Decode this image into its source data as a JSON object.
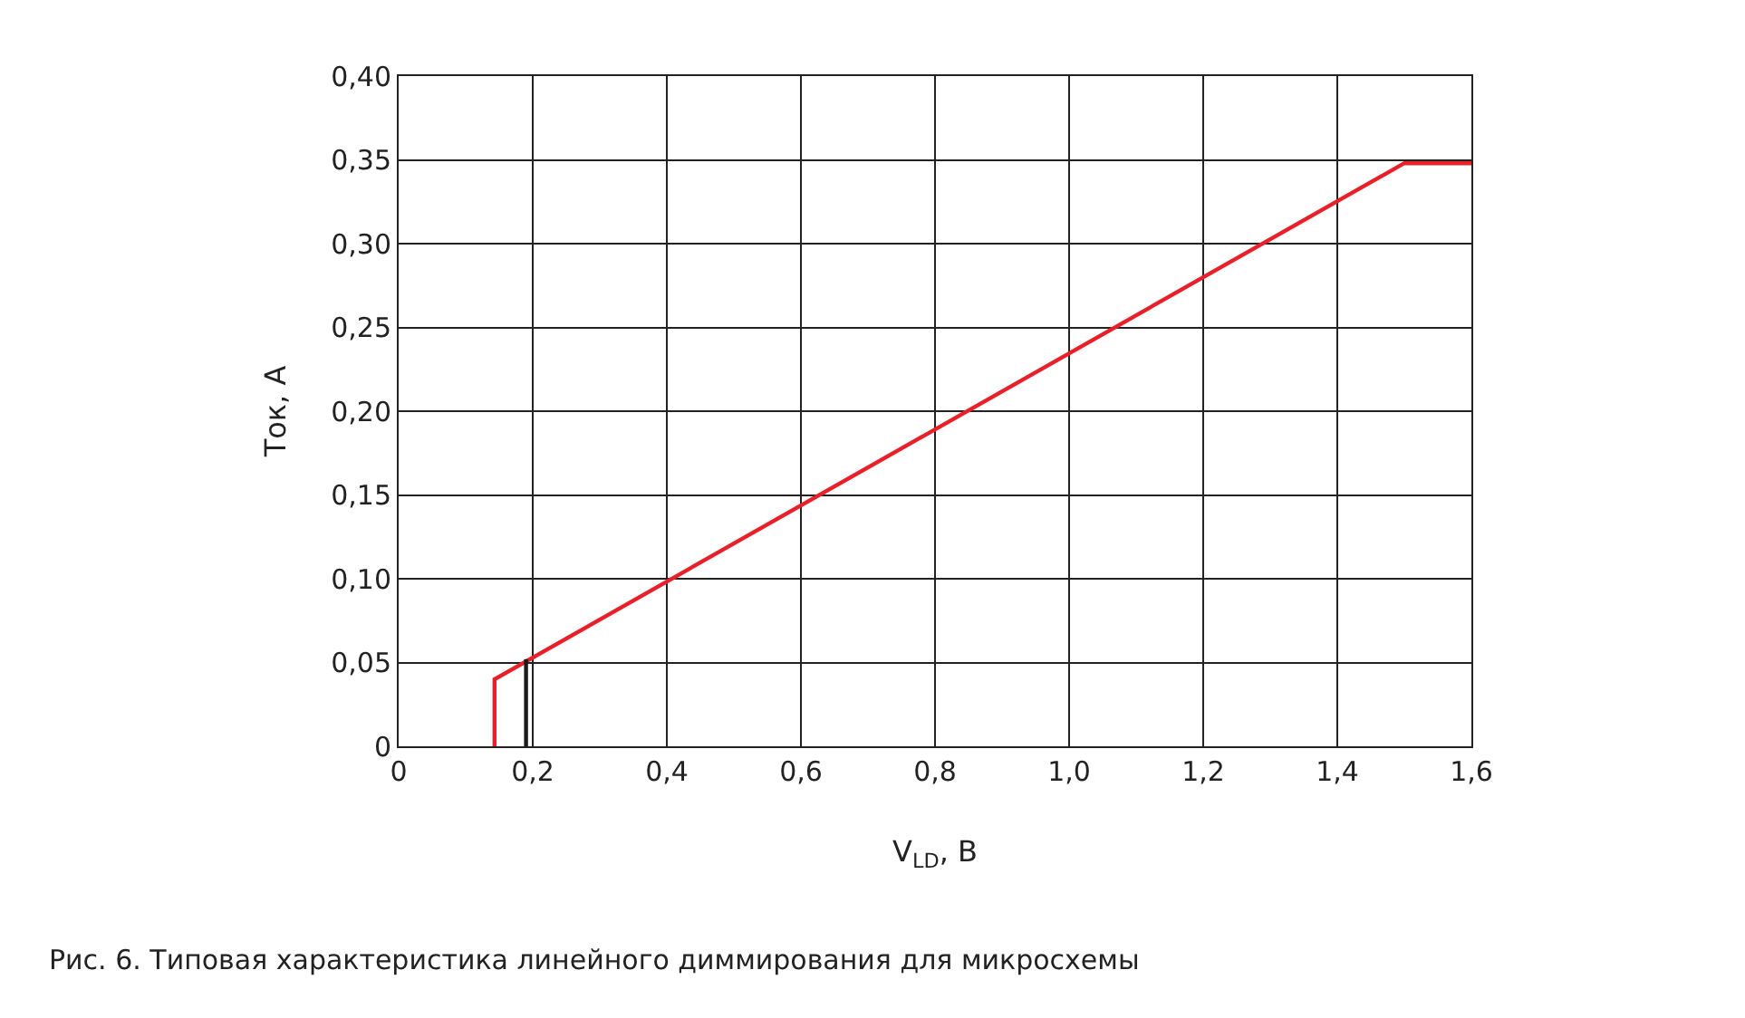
{
  "chart_data": {
    "type": "line",
    "xlabel": "V$_{LD}$, В",
    "ylabel": "Ток, А",
    "series": [
      {
        "color": "#e8202a",
        "x": [
          0.143,
          0.143,
          1.5,
          1.6
        ],
        "values": [
          0,
          0.04,
          0.348,
          0.348
        ]
      },
      {
        "color": "#1a1a1a",
        "x": [
          0.19,
          0.19
        ],
        "values": [
          0,
          0.052
        ]
      }
    ],
    "xlim": [
      0,
      1.6
    ],
    "ylim": [
      0,
      0.4
    ],
    "xticks": [
      0,
      {
        "value": 0.2,
        "label": "0,2"
      },
      {
        "value": 0.4,
        "label": "0,4"
      },
      {
        "value": 0.6,
        "label": "0,6"
      },
      {
        "value": 0.8,
        "label": "0,8"
      },
      {
        "value": 1.0,
        "label": "1,0"
      },
      {
        "value": 1.2,
        "label": "1,2"
      },
      {
        "value": 1.4,
        "label": "1,4"
      },
      {
        "value": 1.6,
        "label": "1,6"
      }
    ],
    "yticks": [
      0,
      {
        "value": 0.05,
        "label": "0,05"
      },
      {
        "value": 0.1,
        "label": "0,10"
      },
      {
        "value": 0.15,
        "label": "0,15"
      },
      {
        "value": 0.2,
        "label": "0,20"
      },
      {
        "value": 0.25,
        "label": "0,25"
      },
      {
        "value": 0.3,
        "label": "0,30"
      },
      {
        "value": 0.35,
        "label": "0,35"
      },
      {
        "value": 0.4,
        "label": "0,40"
      }
    ],
    "grid": true,
    "marker": "none",
    "line_style": "solid",
    "annotations": [
      "Рис. 6. Типовая характеристика линейного диммирования для микросхемы"
    ]
  }
}
